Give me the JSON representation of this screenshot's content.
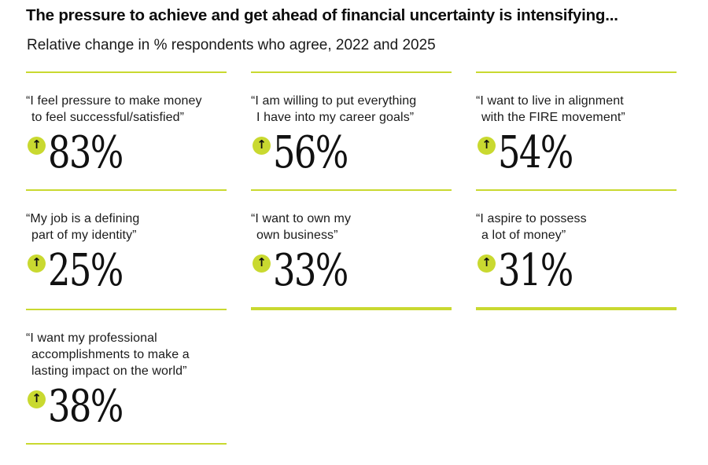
{
  "header": {
    "title": "The pressure to achieve and get ahead of financial uncertainty is intensifying...",
    "subtitle": "Relative change in % respondents who agree, 2022 and 2025"
  },
  "icons": {
    "up_arrow": "↑"
  },
  "colors": {
    "accent": "#c9d930",
    "text": "#141414"
  },
  "cards": [
    {
      "quote": "“I feel pressure to make money\nto feel successful/satisfied”",
      "value": "83%"
    },
    {
      "quote": "“I am willing to put everything\nI have into my career goals”",
      "value": "56%"
    },
    {
      "quote": "“I want to live in alignment\nwith the FIRE movement”",
      "value": "54%"
    },
    {
      "quote": "“My job is a defining\npart of my identity”",
      "value": "25%"
    },
    {
      "quote": "“I want to own my\nown business”",
      "value": "33%"
    },
    {
      "quote": "“I aspire to possess\na lot of money”",
      "value": "31%"
    },
    {
      "quote": "“I want my professional\naccomplishments to make a\nlasting impact on the world”",
      "value": "38%"
    }
  ],
  "chart_data": {
    "type": "table",
    "title": "The pressure to achieve and get ahead of financial uncertainty is intensifying...",
    "subtitle": "Relative change in % respondents who agree, 2022 and 2025",
    "categories": [
      "I feel pressure to make money to feel successful/satisfied",
      "I am willing to put everything I have into my career goals",
      "I want to live in alignment with the FIRE movement",
      "My job is a defining part of my identity",
      "I want to own my own business",
      "I aspire to possess a lot of money",
      "I want my professional accomplishments to make a lasting impact on the world"
    ],
    "values": [
      83,
      56,
      54,
      25,
      33,
      31,
      38
    ],
    "value_unit": "%",
    "direction": "increase",
    "legend_position": "none",
    "layout": "3-column stat cards, 7 items, accent rules between rows"
  }
}
